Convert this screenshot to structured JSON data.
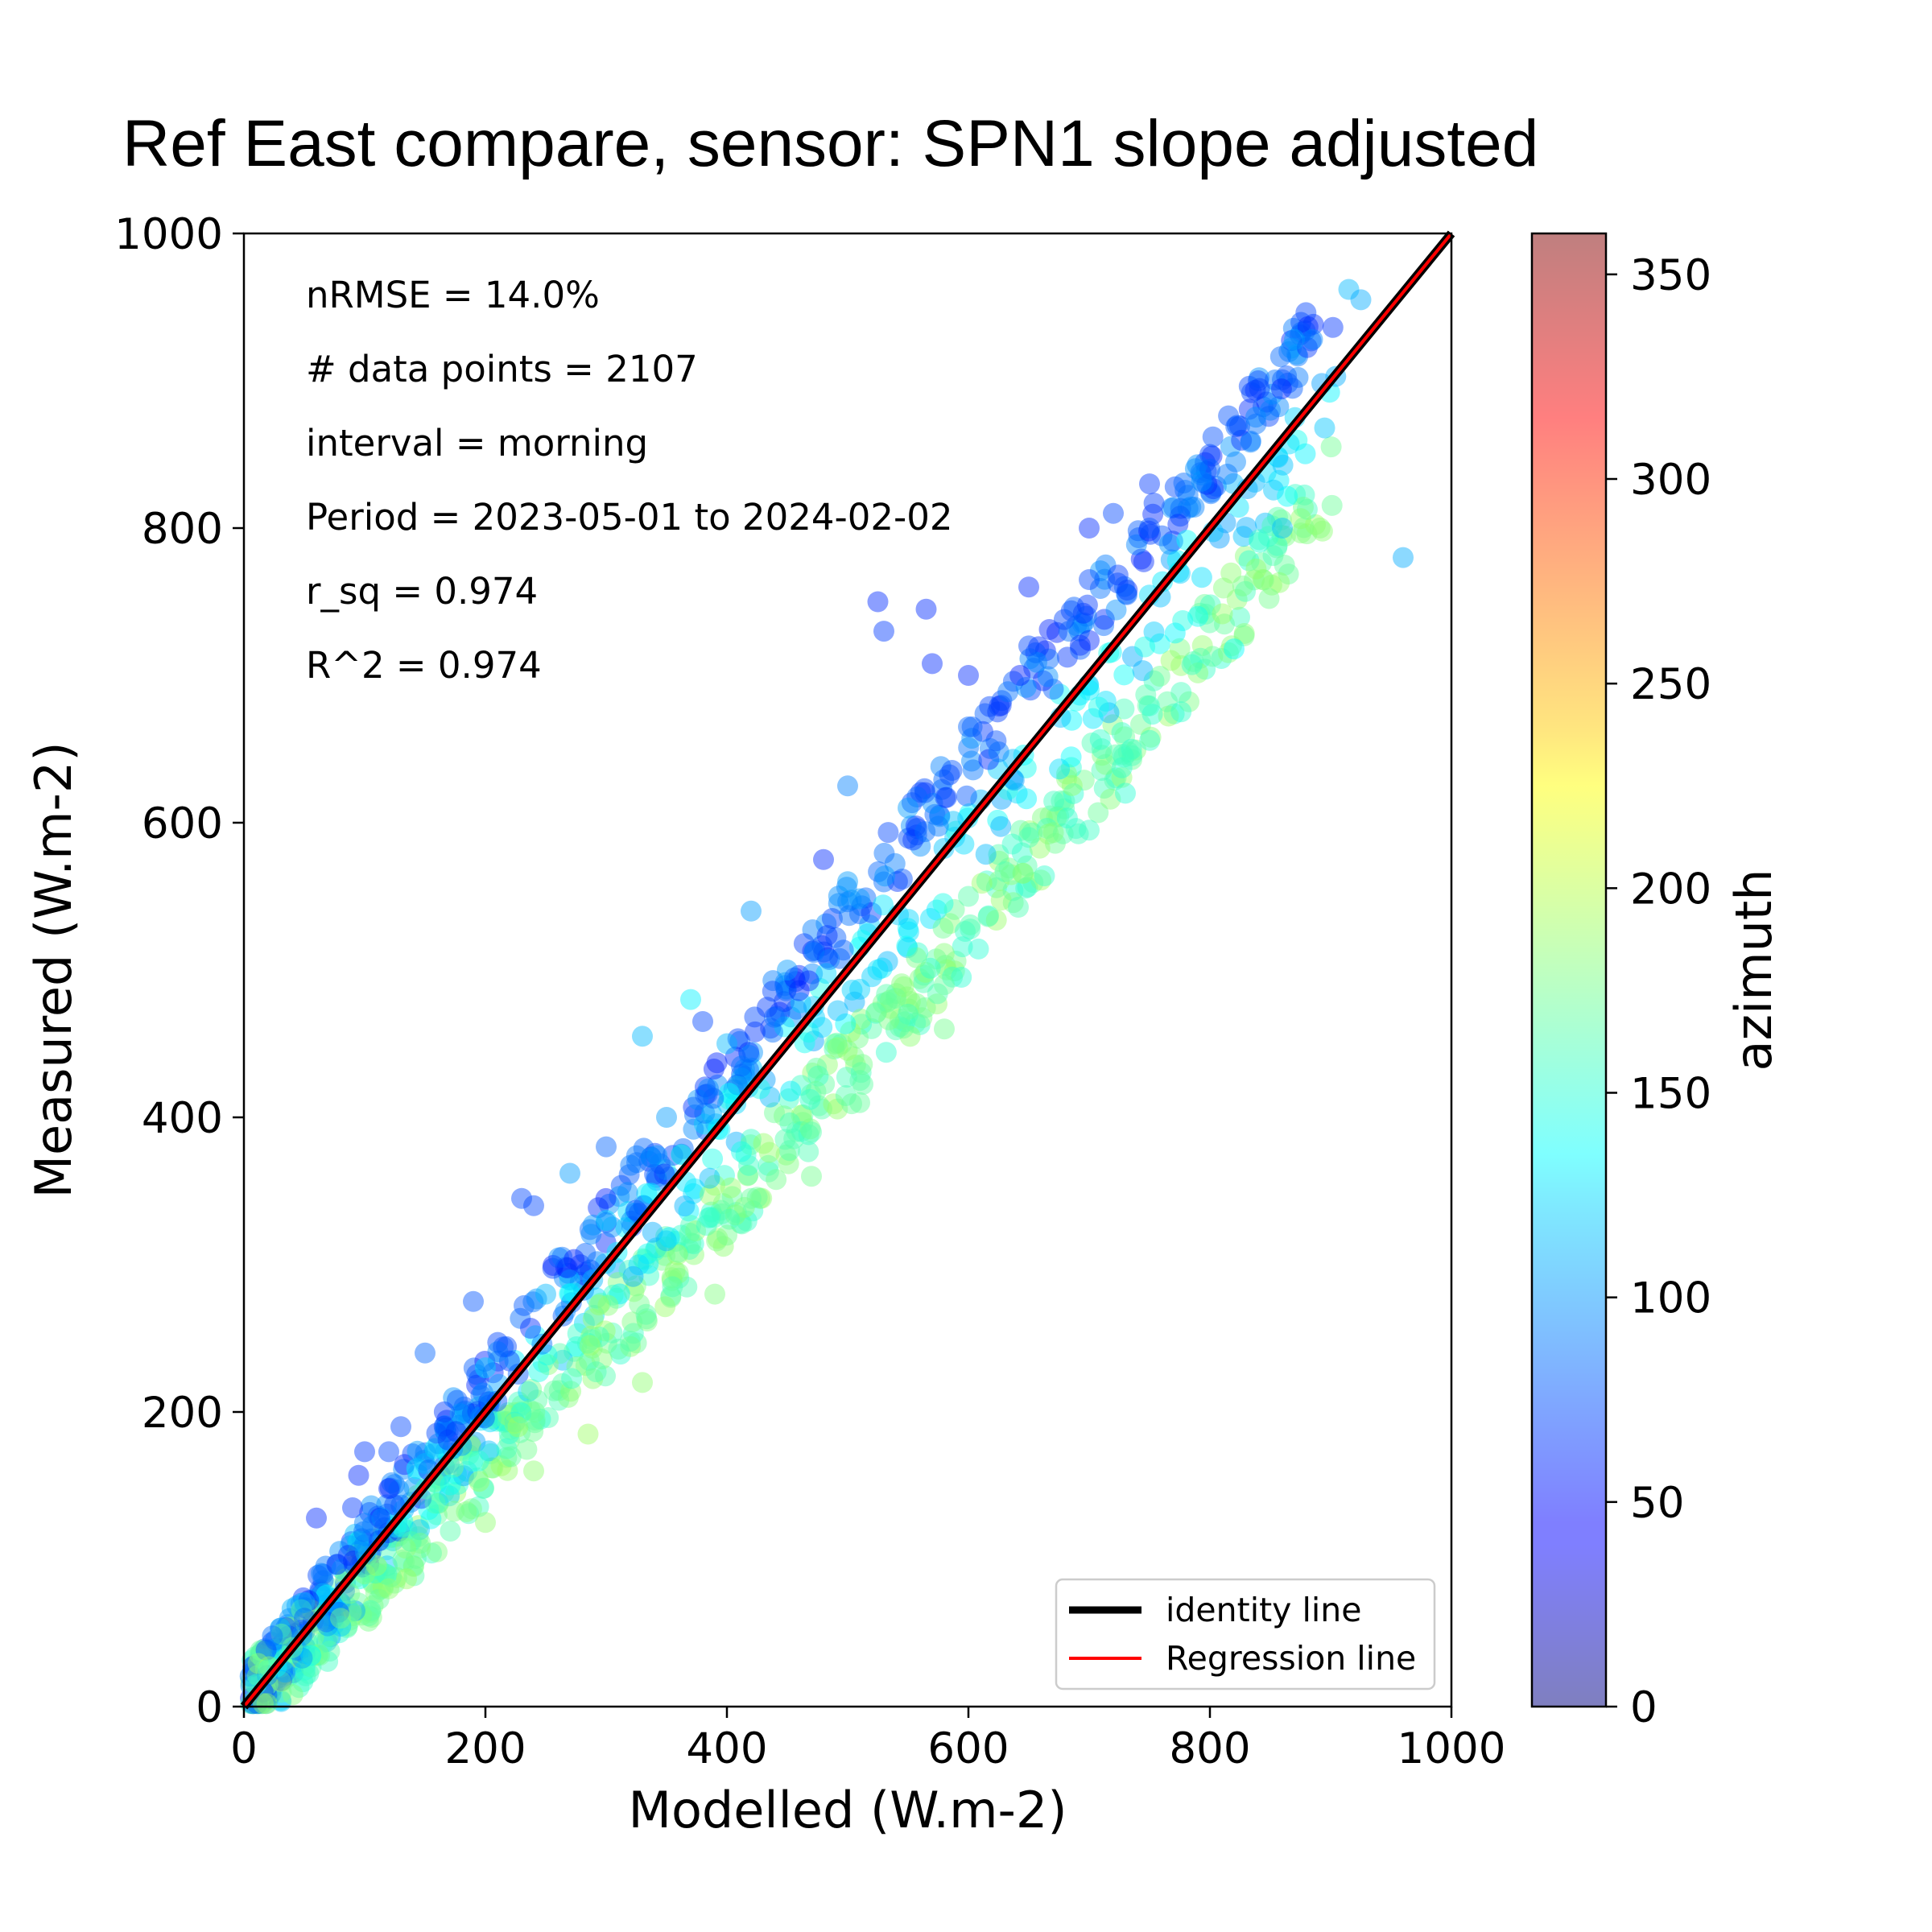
{
  "chart_data": {
    "type": "scatter",
    "title": "Ref East compare, sensor: SPN1 slope adjusted",
    "xlabel": "Modelled (W.m-2)",
    "ylabel": "Measured (W.m-2)",
    "xlim": [
      0,
      1000
    ],
    "ylim": [
      0,
      1000
    ],
    "xticks": [
      "0",
      "200",
      "400",
      "600",
      "800",
      "1000"
    ],
    "yticks": [
      "0",
      "200",
      "400",
      "600",
      "800",
      "1000"
    ],
    "grid": false,
    "annotations": [
      "nRMSE = 14.0%",
      "# data points = 2107",
      "interval = morning",
      "Period = 2023-05-01 to 2024-02-02",
      "r_sq = 0.974",
      "R^2 = 0.974"
    ],
    "legend": {
      "placement": "lower-right",
      "entries": [
        {
          "label": "identity line",
          "color": "#000000"
        },
        {
          "label": "Regression line",
          "color": "#ff0000"
        }
      ]
    },
    "lines": [
      {
        "name": "identity line",
        "x": [
          0,
          1000
        ],
        "y": [
          0,
          1000
        ],
        "color": "#000000"
      },
      {
        "name": "Regression line",
        "x": [
          0,
          1000
        ],
        "y": [
          0,
          1000
        ],
        "color": "#ff0000"
      }
    ],
    "colorbar": {
      "label": "azimuth",
      "range": [
        0,
        360
      ],
      "ticks": [
        "0",
        "50",
        "100",
        "150",
        "200",
        "250",
        "300",
        "350"
      ],
      "colormap": "jet"
    },
    "points_shown": 2107,
    "points": [
      {
        "x": 60,
        "y": 128,
        "c": 60
      },
      {
        "x": 90,
        "y": 135,
        "c": 65
      },
      {
        "x": 95,
        "y": 157,
        "c": 60
      },
      {
        "x": 100,
        "y": 173,
        "c": 65
      },
      {
        "x": 120,
        "y": 173,
        "c": 70
      },
      {
        "x": 130,
        "y": 190,
        "c": 70
      },
      {
        "x": 150,
        "y": 240,
        "c": 80
      },
      {
        "x": 190,
        "y": 275,
        "c": 75
      },
      {
        "x": 230,
        "y": 345,
        "c": 70
      },
      {
        "x": 240,
        "y": 340,
        "c": 70
      },
      {
        "x": 270,
        "y": 362,
        "c": 100
      },
      {
        "x": 300,
        "y": 380,
        "c": 80
      },
      {
        "x": 330,
        "y": 455,
        "c": 110
      },
      {
        "x": 370,
        "y": 480,
        "c": 130
      },
      {
        "x": 380,
        "y": 465,
        "c": 70
      },
      {
        "x": 420,
        "y": 540,
        "c": 100
      },
      {
        "x": 480,
        "y": 575,
        "c": 60
      },
      {
        "x": 500,
        "y": 625,
        "c": 90
      },
      {
        "x": 525,
        "y": 750,
        "c": 60
      },
      {
        "x": 530,
        "y": 730,
        "c": 65
      },
      {
        "x": 565,
        "y": 745,
        "c": 60
      },
      {
        "x": 570,
        "y": 708,
        "c": 60
      },
      {
        "x": 600,
        "y": 700,
        "c": 60
      },
      {
        "x": 650,
        "y": 760,
        "c": 60
      },
      {
        "x": 700,
        "y": 800,
        "c": 60
      },
      {
        "x": 720,
        "y": 810,
        "c": 70
      },
      {
        "x": 750,
        "y": 830,
        "c": 65
      },
      {
        "x": 800,
        "y": 850,
        "c": 70
      },
      {
        "x": 840,
        "y": 900,
        "c": 70
      },
      {
        "x": 870,
        "y": 928,
        "c": 100
      },
      {
        "x": 885,
        "y": 928,
        "c": 90
      },
      {
        "x": 915,
        "y": 962,
        "c": 110
      },
      {
        "x": 925,
        "y": 955,
        "c": 105
      },
      {
        "x": 960,
        "y": 780,
        "c": 105
      },
      {
        "x": 895,
        "y": 868,
        "c": 115
      },
      {
        "x": 860,
        "y": 800,
        "c": 110
      },
      {
        "x": 820,
        "y": 718,
        "c": 135
      },
      {
        "x": 790,
        "y": 740,
        "c": 140
      },
      {
        "x": 730,
        "y": 620,
        "c": 150
      },
      {
        "x": 700,
        "y": 595,
        "c": 155
      },
      {
        "x": 700,
        "y": 690,
        "c": 130
      },
      {
        "x": 650,
        "y": 590,
        "c": 160
      },
      {
        "x": 600,
        "y": 550,
        "c": 165
      },
      {
        "x": 580,
        "y": 490,
        "c": 170
      },
      {
        "x": 580,
        "y": 460,
        "c": 175
      },
      {
        "x": 550,
        "y": 470,
        "c": 160
      },
      {
        "x": 510,
        "y": 410,
        "c": 170
      },
      {
        "x": 470,
        "y": 390,
        "c": 165
      },
      {
        "x": 470,
        "y": 360,
        "c": 175
      },
      {
        "x": 420,
        "y": 345,
        "c": 170
      },
      {
        "x": 400,
        "y": 320,
        "c": 175
      },
      {
        "x": 390,
        "y": 280,
        "c": 180
      },
      {
        "x": 330,
        "y": 220,
        "c": 185
      },
      {
        "x": 285,
        "y": 185,
        "c": 190
      },
      {
        "x": 240,
        "y": 160,
        "c": 185
      },
      {
        "x": 200,
        "y": 125,
        "c": 185
      },
      {
        "x": 160,
        "y": 105,
        "c": 180
      },
      {
        "x": 120,
        "y": 80,
        "c": 185
      },
      {
        "x": 80,
        "y": 60,
        "c": 180
      },
      {
        "x": 40,
        "y": 40,
        "c": 170
      },
      {
        "x": 20,
        "y": 25,
        "c": 160
      },
      {
        "x": 10,
        "y": 15,
        "c": 150
      },
      {
        "x": 50,
        "y": 60,
        "c": 80
      },
      {
        "x": 100,
        "y": 110,
        "c": 90
      },
      {
        "x": 150,
        "y": 165,
        "c": 110
      },
      {
        "x": 200,
        "y": 230,
        "c": 120
      },
      {
        "x": 250,
        "y": 280,
        "c": 110
      },
      {
        "x": 300,
        "y": 330,
        "c": 120
      },
      {
        "x": 350,
        "y": 400,
        "c": 100
      },
      {
        "x": 400,
        "y": 450,
        "c": 110
      },
      {
        "x": 450,
        "y": 500,
        "c": 100
      },
      {
        "x": 500,
        "y": 560,
        "c": 100
      },
      {
        "x": 550,
        "y": 610,
        "c": 100
      },
      {
        "x": 600,
        "y": 665,
        "c": 80
      },
      {
        "x": 650,
        "y": 720,
        "c": 70
      },
      {
        "x": 700,
        "y": 765,
        "c": 70
      },
      {
        "x": 750,
        "y": 800,
        "c": 75
      },
      {
        "x": 800,
        "y": 840,
        "c": 80
      },
      {
        "x": 850,
        "y": 880,
        "c": 90
      }
    ]
  }
}
